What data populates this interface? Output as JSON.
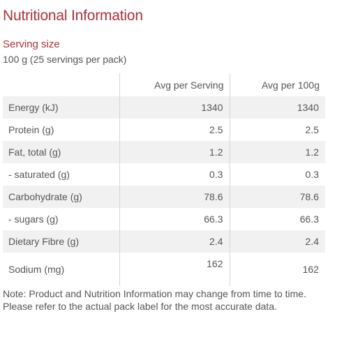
{
  "title": "Nutritional Information",
  "serving": {
    "heading": "Serving size",
    "value": "100 g (25 servings per pack)"
  },
  "table": {
    "headers": [
      "",
      "Avg per Serving",
      "Avg per 100g"
    ],
    "rows": [
      {
        "nutrient": "Energy (kJ)",
        "per_serving": "1340",
        "per_100g": "1340"
      },
      {
        "nutrient": "Protein (g)",
        "per_serving": "2.5",
        "per_100g": "2.5"
      },
      {
        "nutrient": "Fat, total (g)",
        "per_serving": "1.2",
        "per_100g": "1.2"
      },
      {
        "nutrient": "- saturated (g)",
        "per_serving": "0.3",
        "per_100g": "0.3"
      },
      {
        "nutrient": "Carbohydrate (g)",
        "per_serving": "78.6",
        "per_100g": "78.6"
      },
      {
        "nutrient": "- sugars (g)",
        "per_serving": "66.3",
        "per_100g": "66.3"
      },
      {
        "nutrient": "Dietary Fibre (g)",
        "per_serving": "2.4",
        "per_100g": "2.4"
      },
      {
        "nutrient": "Sodium (mg)",
        "per_serving": "162",
        "per_100g": "162"
      }
    ]
  },
  "note": "Note: Product and Nutrition Information may change from time to time. Please refer to the actual pack label for the most accurate data.",
  "colors": {
    "heading_red": "#a8323a",
    "text_gray": "#555555",
    "stripe_gray": "#f1f1f1"
  }
}
